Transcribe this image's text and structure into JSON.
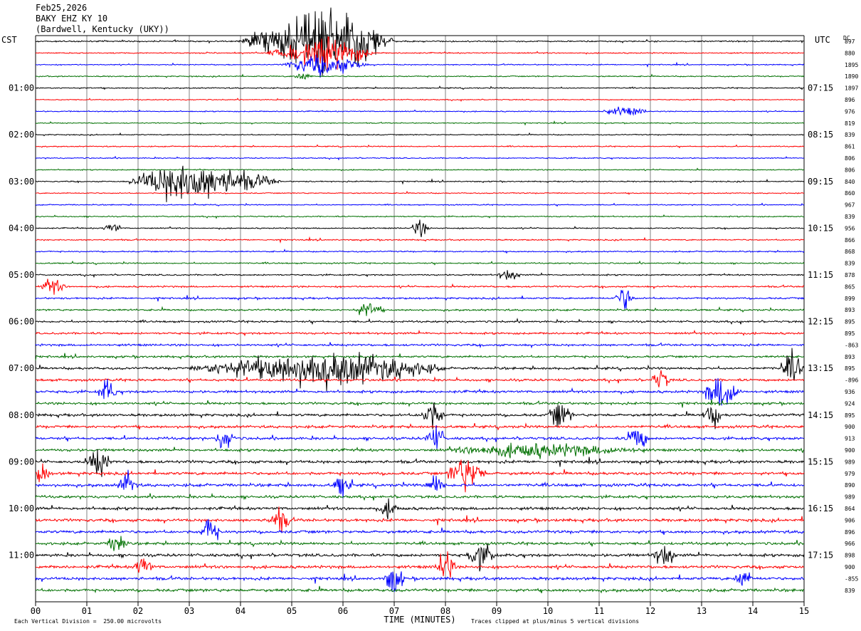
{
  "header": {
    "date": "Feb25,2026",
    "station": "BAKY EHZ KY 10",
    "location": "(Bardwell, Kentucky (UKY))"
  },
  "left_timezone": "CST",
  "right_timezone": "UTC",
  "dc_label": "DC",
  "footer": {
    "scale_note": "Each Vertical Division =  250.00 microvolts",
    "clip_note": "Traces clipped at plus/minus 5 vertical divisions",
    "xaxis_label": "TIME (MINUTES)"
  },
  "colors": {
    "trace_cycle": [
      "#000000",
      "#ff0000",
      "#0000ff",
      "#007000"
    ],
    "grid": "#808080",
    "axis": "#000000"
  },
  "chart_data": {
    "type": "line",
    "xlabel": "TIME (MINUTES)",
    "xlim": [
      0,
      15
    ],
    "x_ticks": [
      "00",
      "01",
      "02",
      "03",
      "04",
      "05",
      "06",
      "07",
      "08",
      "09",
      "10",
      "11",
      "12",
      "13",
      "14",
      "15"
    ],
    "trace_count": 48,
    "traces_per_hour": 4,
    "minutes_per_trace": 15,
    "left_hour_labels": [
      "01:00",
      "02:00",
      "03:00",
      "04:00",
      "05:00",
      "06:00",
      "07:00",
      "08:00",
      "09:00",
      "10:00",
      "11:00"
    ],
    "right_hour_labels": [
      "07:15",
      "08:15",
      "09:15",
      "10:15",
      "11:15",
      "12:15",
      "13:15",
      "14:15",
      "15:15",
      "16:15",
      "17:15"
    ],
    "dc_offsets": [
      "897",
      "880",
      "1895",
      "1890",
      "1897",
      "896",
      "976",
      "819",
      "839",
      "861",
      "806",
      "806",
      "840",
      "860",
      "967",
      "839",
      "956",
      "866",
      "868",
      "839",
      "878",
      "865",
      "899",
      "893",
      "895",
      "895",
      "-863",
      "893",
      "895",
      "-896",
      "936",
      "924",
      "895",
      "900",
      "913",
      "900",
      "989",
      "979",
      "890",
      "989",
      "864",
      "906",
      "896",
      "966",
      "898",
      "900",
      "-855",
      "839"
    ],
    "amplitude_index": [
      0.6,
      0.5,
      0.45,
      0.5,
      0.5,
      0.4,
      0.45,
      0.4,
      0.45,
      0.45,
      0.45,
      0.45,
      0.5,
      0.45,
      0.45,
      0.5,
      0.5,
      0.55,
      0.55,
      0.55,
      0.6,
      0.7,
      0.75,
      0.75,
      0.8,
      0.85,
      0.9,
      0.9,
      1.0,
      1.0,
      1.05,
      1.0,
      1.1,
      1.1,
      1.1,
      1.1,
      1.2,
      1.2,
      1.2,
      1.1,
      1.2,
      1.2,
      1.2,
      1.1,
      1.2,
      1.2,
      1.2,
      1.2
    ],
    "events": [
      {
        "trace": 0,
        "start_min": 4.0,
        "end_min": 7.0,
        "peak_min": 5.8,
        "size": 30
      },
      {
        "trace": 1,
        "start_min": 4.5,
        "end_min": 6.6,
        "peak_min": 5.8,
        "size": 14
      },
      {
        "trace": 2,
        "start_min": 4.8,
        "end_min": 6.5,
        "peak_min": 5.6,
        "size": 10
      },
      {
        "trace": 3,
        "start_min": 5.0,
        "end_min": 5.4,
        "peak_min": 5.2,
        "size": 4
      },
      {
        "trace": 6,
        "start_min": 11.0,
        "end_min": 12.0,
        "peak_min": 11.5,
        "size": 4
      },
      {
        "trace": 12,
        "start_min": 1.8,
        "end_min": 4.8,
        "peak_min": 2.8,
        "size": 18
      },
      {
        "trace": 16,
        "start_min": 7.3,
        "end_min": 7.7,
        "peak_min": 7.5,
        "size": 8
      },
      {
        "trace": 16,
        "start_min": 1.3,
        "end_min": 1.7,
        "peak_min": 1.5,
        "size": 5
      },
      {
        "trace": 20,
        "start_min": 9.0,
        "end_min": 9.5,
        "peak_min": 9.2,
        "size": 5
      },
      {
        "trace": 21,
        "start_min": 0.1,
        "end_min": 0.6,
        "peak_min": 0.3,
        "size": 8
      },
      {
        "trace": 22,
        "start_min": 11.3,
        "end_min": 11.7,
        "peak_min": 11.5,
        "size": 12
      },
      {
        "trace": 23,
        "start_min": 6.2,
        "end_min": 6.8,
        "peak_min": 6.5,
        "size": 7
      },
      {
        "trace": 28,
        "start_min": 3.0,
        "end_min": 8.0,
        "peak_min": 5.8,
        "size": 16
      },
      {
        "trace": 28,
        "start_min": 14.5,
        "end_min": 15.0,
        "peak_min": 14.8,
        "size": 14
      },
      {
        "trace": 29,
        "start_min": 12.0,
        "end_min": 12.4,
        "peak_min": 12.2,
        "size": 9
      },
      {
        "trace": 30,
        "start_min": 1.2,
        "end_min": 1.6,
        "peak_min": 1.4,
        "size": 12
      },
      {
        "trace": 30,
        "start_min": 13.0,
        "end_min": 13.8,
        "peak_min": 13.4,
        "size": 16
      },
      {
        "trace": 32,
        "start_min": 7.5,
        "end_min": 8.0,
        "peak_min": 7.7,
        "size": 14
      },
      {
        "trace": 32,
        "start_min": 10.0,
        "end_min": 10.5,
        "peak_min": 10.2,
        "size": 13
      },
      {
        "trace": 32,
        "start_min": 13.0,
        "end_min": 13.4,
        "peak_min": 13.2,
        "size": 13
      },
      {
        "trace": 34,
        "start_min": 3.5,
        "end_min": 3.9,
        "peak_min": 3.7,
        "size": 11
      },
      {
        "trace": 34,
        "start_min": 7.6,
        "end_min": 8.0,
        "peak_min": 7.8,
        "size": 13
      },
      {
        "trace": 34,
        "start_min": 11.5,
        "end_min": 12.0,
        "peak_min": 11.7,
        "size": 12
      },
      {
        "trace": 35,
        "start_min": 8.0,
        "end_min": 12.0,
        "peak_min": 9.5,
        "size": 6
      },
      {
        "trace": 36,
        "start_min": 1.0,
        "end_min": 1.5,
        "peak_min": 1.2,
        "size": 14
      },
      {
        "trace": 37,
        "start_min": 8.0,
        "end_min": 8.8,
        "peak_min": 8.4,
        "size": 16
      },
      {
        "trace": 37,
        "start_min": 0.0,
        "end_min": 0.3,
        "peak_min": 0.1,
        "size": 10
      },
      {
        "trace": 38,
        "start_min": 1.6,
        "end_min": 2.0,
        "peak_min": 1.8,
        "size": 12
      },
      {
        "trace": 38,
        "start_min": 5.8,
        "end_min": 6.2,
        "peak_min": 6.0,
        "size": 12
      },
      {
        "trace": 38,
        "start_min": 7.6,
        "end_min": 8.0,
        "peak_min": 7.8,
        "size": 10
      },
      {
        "trace": 40,
        "start_min": 6.7,
        "end_min": 7.1,
        "peak_min": 6.9,
        "size": 8
      },
      {
        "trace": 41,
        "start_min": 4.5,
        "end_min": 5.0,
        "peak_min": 4.8,
        "size": 10
      },
      {
        "trace": 42,
        "start_min": 3.2,
        "end_min": 3.6,
        "peak_min": 3.4,
        "size": 14
      },
      {
        "trace": 43,
        "start_min": 1.4,
        "end_min": 1.8,
        "peak_min": 1.6,
        "size": 12
      },
      {
        "trace": 44,
        "start_min": 8.4,
        "end_min": 9.0,
        "peak_min": 8.7,
        "size": 12
      },
      {
        "trace": 44,
        "start_min": 12.0,
        "end_min": 12.5,
        "peak_min": 12.3,
        "size": 10
      },
      {
        "trace": 45,
        "start_min": 7.8,
        "end_min": 8.2,
        "peak_min": 8.0,
        "size": 18
      },
      {
        "trace": 45,
        "start_min": 1.9,
        "end_min": 2.3,
        "peak_min": 2.1,
        "size": 10
      },
      {
        "trace": 46,
        "start_min": 6.8,
        "end_min": 7.2,
        "peak_min": 7.0,
        "size": 16
      },
      {
        "trace": 46,
        "start_min": 13.6,
        "end_min": 14.0,
        "peak_min": 13.8,
        "size": 8
      }
    ]
  }
}
